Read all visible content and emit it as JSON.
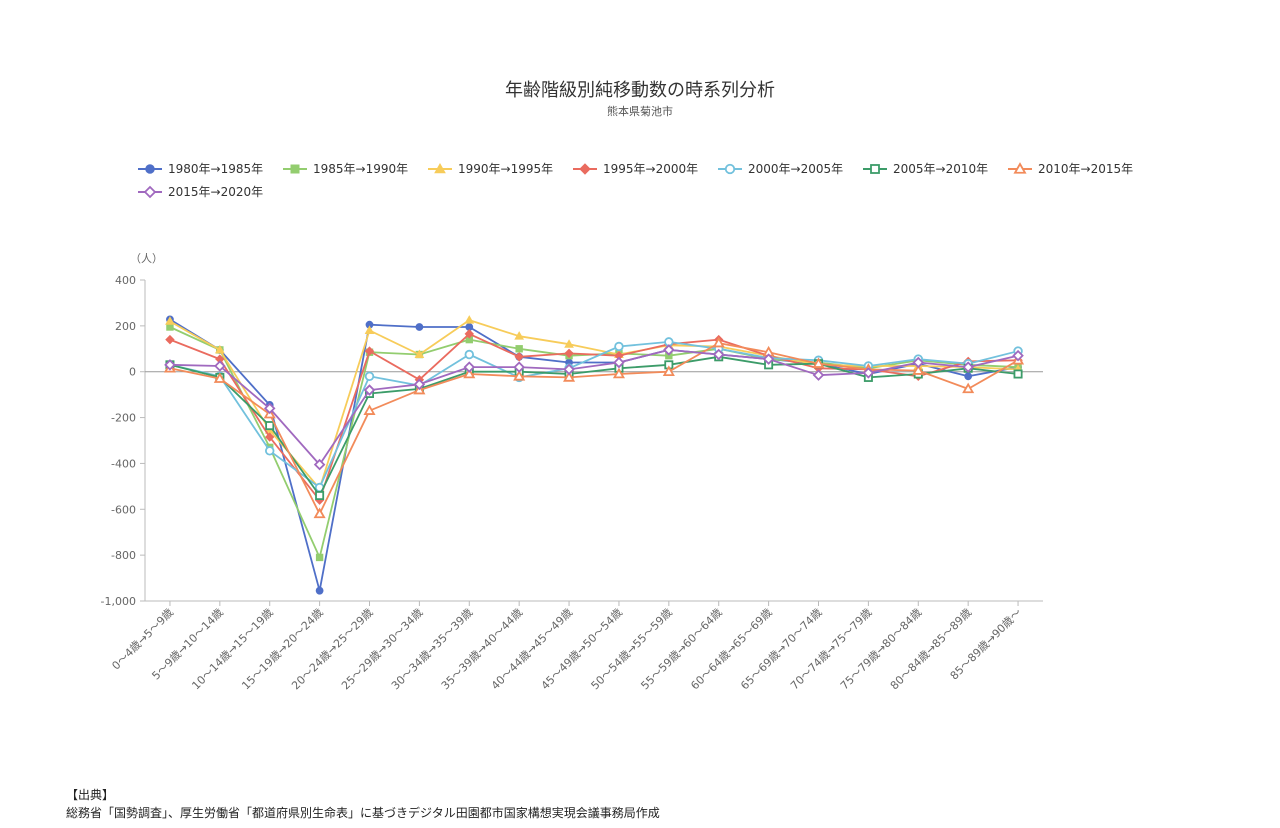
{
  "chart_data": {
    "type": "line",
    "title": "年齢階級別純移動数の時系列分析",
    "subtitle": "熊本県菊池市",
    "ylabel": "（人）",
    "ylim": [
      -1000,
      400
    ],
    "yticks": [
      400,
      200,
      0,
      -200,
      -400,
      -600,
      -800,
      -1000
    ],
    "ytick_labels": [
      "400",
      "200",
      "0",
      "-200",
      "-400",
      "-600",
      "-800",
      "-1,000"
    ],
    "legend_position": "top-left",
    "grid": false,
    "categories": [
      "0～4歳→5～9歳",
      "5～9歳→10～14歳",
      "10～14歳→15～19歳",
      "15～19歳→20～24歳",
      "20～24歳→25～29歳",
      "25～29歳→30～34歳",
      "30～34歳→35～39歳",
      "35～39歳→40～44歳",
      "40～44歳→45～49歳",
      "45～49歳→50～54歳",
      "50～54歳→55～59歳",
      "55～59歳→60～64歳",
      "60～64歳→65～69歳",
      "65～69歳→70～74歳",
      "70～74歳→75～79歳",
      "75～79歳→80～84歳",
      "80～84歳→85～89歳",
      "85～89歳→90歳～"
    ],
    "series": [
      {
        "name": "1980年→1985年",
        "color": "#4f6fc8",
        "marker": "circle",
        "filled": true,
        "values": [
          228,
          95,
          -145,
          -955,
          205,
          195,
          195,
          65,
          40,
          40,
          95,
          75,
          55,
          35,
          -10,
          35,
          -20,
          20
        ]
      },
      {
        "name": "1985年→1990年",
        "color": "#93cd6f",
        "marker": "square",
        "filled": true,
        "values": [
          195,
          95,
          -330,
          -810,
          85,
          75,
          140,
          100,
          70,
          80,
          70,
          100,
          55,
          40,
          15,
          50,
          30,
          20
        ]
      },
      {
        "name": "1990年→1995年",
        "color": "#f7cc5a",
        "marker": "triangle",
        "filled": true,
        "values": [
          220,
          95,
          -255,
          -510,
          180,
          75,
          225,
          155,
          120,
          75,
          115,
          110,
          70,
          30,
          25,
          25,
          20,
          10
        ]
      },
      {
        "name": "1995年→2000年",
        "color": "#ea6b5f",
        "marker": "diamond",
        "filled": true,
        "values": [
          140,
          55,
          -285,
          -560,
          90,
          -35,
          165,
          65,
          80,
          70,
          120,
          140,
          70,
          15,
          10,
          -20,
          45,
          50
        ]
      },
      {
        "name": "2000年→2005年",
        "color": "#72c1dd",
        "marker": "circle",
        "filled": false,
        "values": [
          30,
          -20,
          -345,
          -505,
          -20,
          -60,
          75,
          -25,
          15,
          110,
          130,
          100,
          60,
          50,
          25,
          55,
          35,
          90
        ]
      },
      {
        "name": "2005年→2010年",
        "color": "#3c9c69",
        "marker": "square",
        "filled": false,
        "values": [
          30,
          -25,
          -235,
          -540,
          -95,
          -75,
          0,
          0,
          -10,
          15,
          30,
          65,
          30,
          35,
          -25,
          -10,
          15,
          -10
        ]
      },
      {
        "name": "2010年→2015年",
        "color": "#f28b5a",
        "marker": "triangle",
        "filled": false,
        "values": [
          15,
          -30,
          -185,
          -620,
          -170,
          -80,
          -10,
          -20,
          -25,
          -10,
          0,
          125,
          85,
          35,
          10,
          5,
          -75,
          50
        ]
      },
      {
        "name": "2015年→2020年",
        "color": "#a069bf",
        "marker": "diamond",
        "filled": false,
        "values": [
          30,
          25,
          -160,
          -405,
          -80,
          -55,
          20,
          20,
          10,
          40,
          95,
          75,
          55,
          -15,
          -5,
          40,
          20,
          70
        ]
      }
    ]
  },
  "source": {
    "heading": "【出典】",
    "text": "総務省「国勢調査」、厚生労働省「都道府県別生命表」に基づきデジタル田園都市国家構想実現会議事務局作成"
  }
}
